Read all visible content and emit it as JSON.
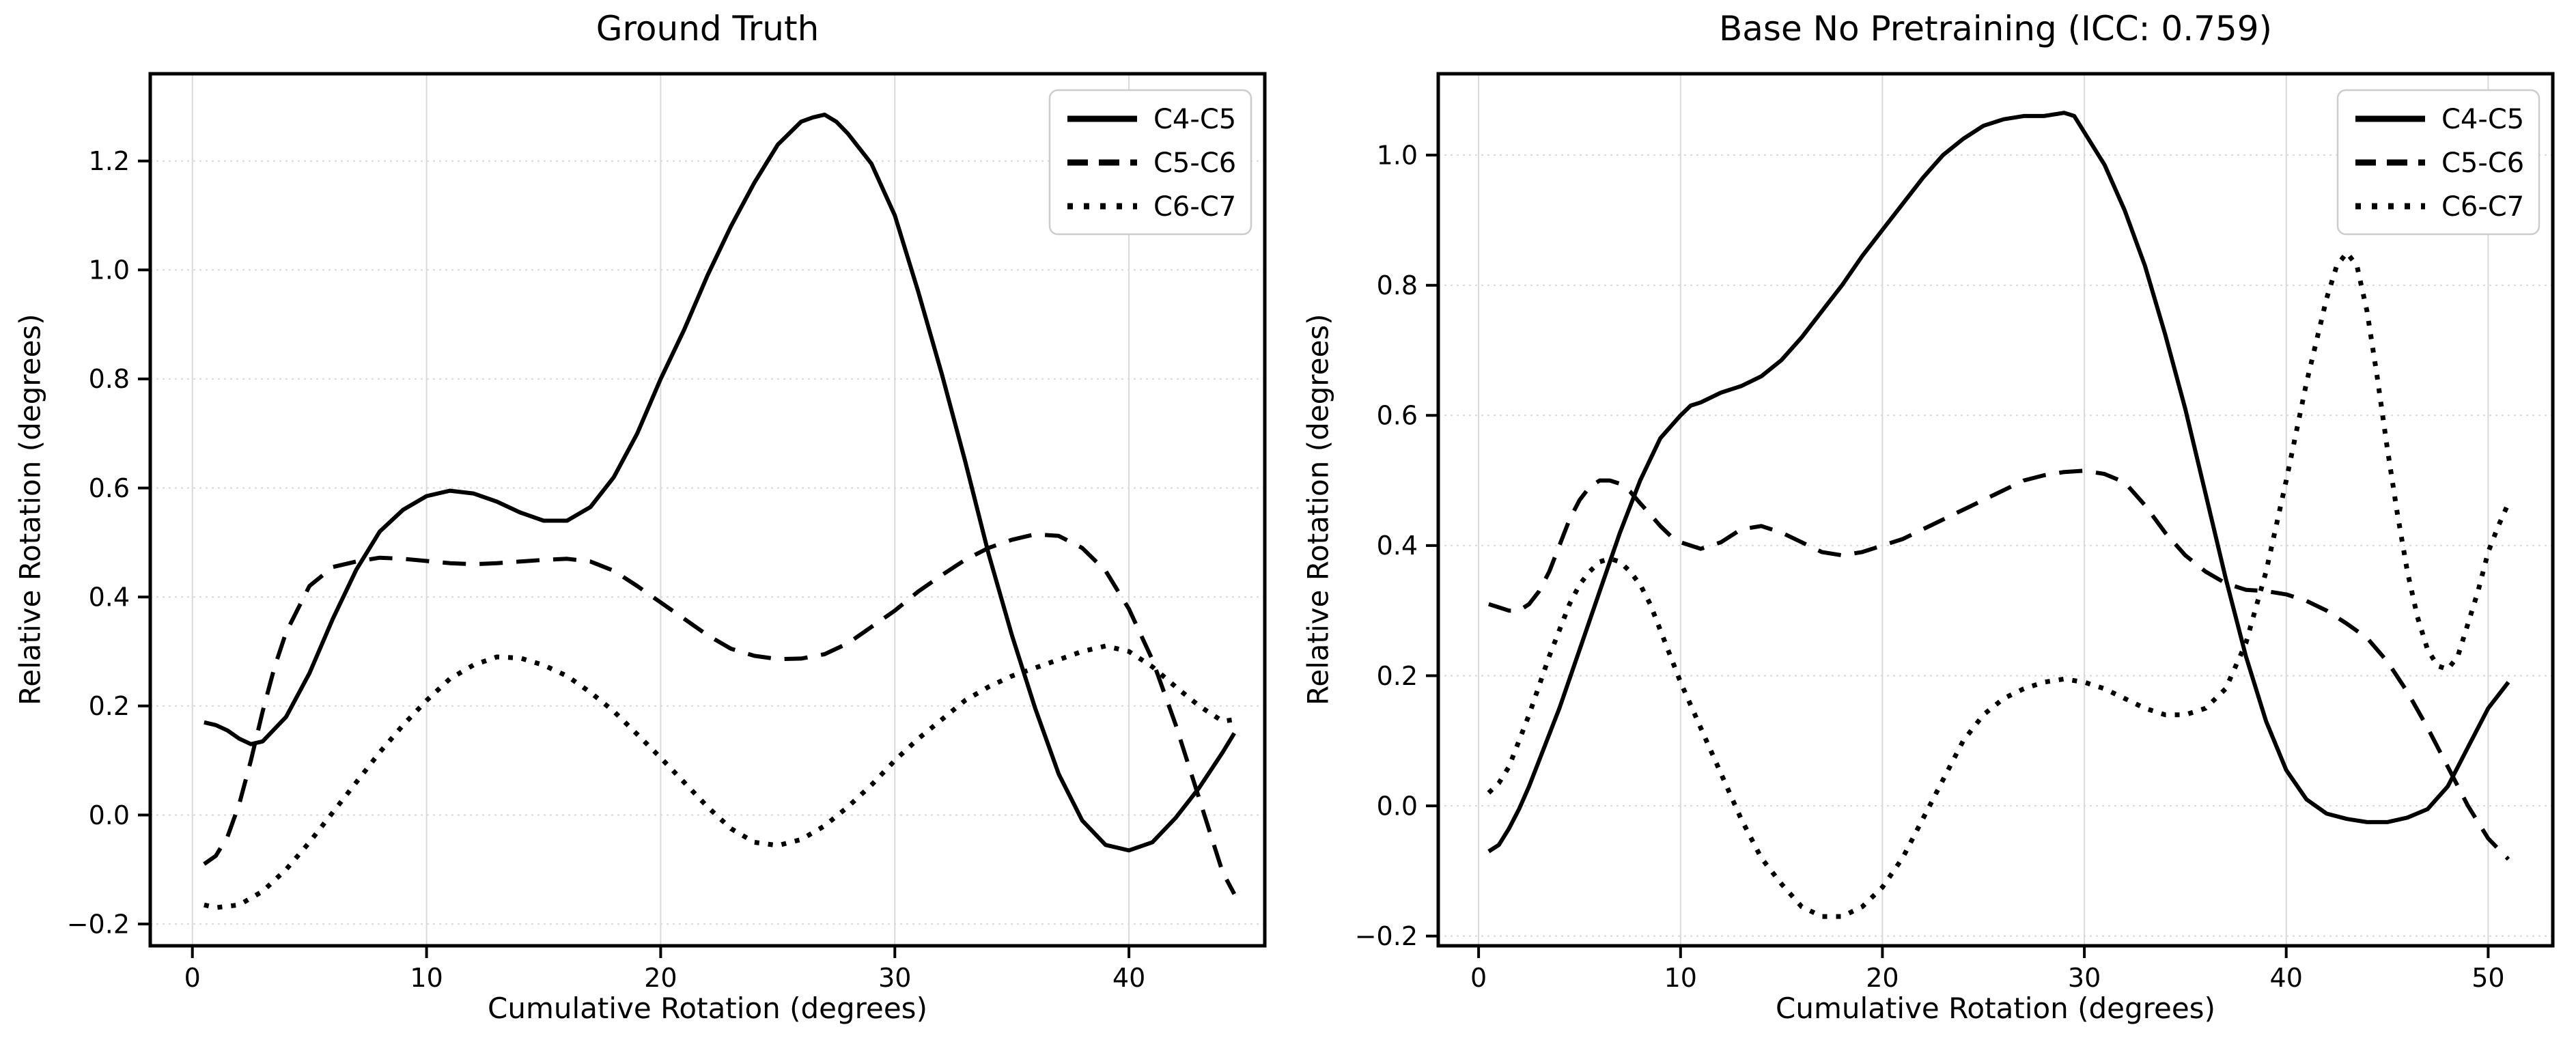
{
  "figure": {
    "background": "#ffffff",
    "line_color": "#000000",
    "grid_color": "#d9d9d9",
    "spine_color": "#000000",
    "text_color": "#000000"
  },
  "chart_data": [
    {
      "type": "line",
      "title": "Ground Truth",
      "xlabel": "Cumulative Rotation (degrees)",
      "ylabel": "Relative Rotation (degrees)",
      "xlim": [
        -1.8,
        45.8
      ],
      "ylim": [
        -0.24,
        1.36
      ],
      "grid": true,
      "legend_position": "upper right",
      "xticks": {
        "values": [
          0,
          10,
          20,
          30,
          40
        ],
        "labels": [
          "0",
          "10",
          "20",
          "30",
          "40"
        ]
      },
      "yticks": {
        "values": [
          -0.2,
          0.0,
          0.2,
          0.4,
          0.6,
          0.8,
          1.0,
          1.2
        ],
        "labels": [
          "−0.2",
          "0.0",
          "0.2",
          "0.4",
          "0.6",
          "0.8",
          "1.0",
          "1.2"
        ]
      },
      "series": [
        {
          "name": "C4-C5",
          "style": "solid",
          "x": [
            0.5,
            1,
            1.5,
            2,
            2.5,
            3,
            4,
            5,
            6,
            7,
            8,
            9,
            10,
            11,
            12,
            13,
            14,
            15,
            16,
            17,
            18,
            19,
            20,
            21,
            22,
            23,
            24,
            25,
            26,
            26.5,
            27,
            27.5,
            28,
            29,
            30,
            31,
            32,
            33,
            34,
            35,
            36,
            37,
            38,
            39,
            40,
            41,
            42,
            43,
            44,
            44.5
          ],
          "y": [
            0.17,
            0.165,
            0.155,
            0.14,
            0.13,
            0.135,
            0.18,
            0.26,
            0.36,
            0.45,
            0.52,
            0.56,
            0.585,
            0.595,
            0.59,
            0.575,
            0.555,
            0.54,
            0.54,
            0.565,
            0.62,
            0.7,
            0.8,
            0.89,
            0.99,
            1.08,
            1.16,
            1.23,
            1.272,
            1.28,
            1.285,
            1.272,
            1.25,
            1.195,
            1.1,
            0.96,
            0.81,
            0.65,
            0.48,
            0.33,
            0.195,
            0.075,
            -0.01,
            -0.055,
            -0.065,
            -0.05,
            -0.005,
            0.05,
            0.115,
            0.15
          ]
        },
        {
          "name": "C5-C6",
          "style": "dashed",
          "x": [
            0.5,
            1,
            1.5,
            2,
            2.5,
            3,
            3.5,
            4,
            5,
            6,
            7,
            8,
            9,
            10,
            11,
            12,
            13,
            14,
            15,
            16,
            17,
            18,
            19,
            20,
            21,
            22,
            23,
            24,
            25,
            26,
            27,
            28,
            29,
            30,
            31,
            32,
            33,
            34,
            35,
            36,
            37,
            38,
            39,
            40,
            41,
            42,
            43,
            44,
            44.5
          ],
          "y": [
            -0.09,
            -0.075,
            -0.04,
            0.02,
            0.1,
            0.19,
            0.27,
            0.335,
            0.42,
            0.455,
            0.465,
            0.472,
            0.47,
            0.466,
            0.462,
            0.46,
            0.462,
            0.465,
            0.468,
            0.47,
            0.465,
            0.448,
            0.42,
            0.39,
            0.36,
            0.33,
            0.305,
            0.292,
            0.286,
            0.287,
            0.295,
            0.315,
            0.345,
            0.375,
            0.41,
            0.44,
            0.468,
            0.49,
            0.505,
            0.515,
            0.512,
            0.49,
            0.448,
            0.378,
            0.285,
            0.165,
            0.03,
            -0.105,
            -0.145
          ]
        },
        {
          "name": "C6-C7",
          "style": "dotted",
          "x": [
            0.5,
            1,
            2,
            3,
            4,
            5,
            6,
            7,
            8,
            9,
            10,
            11,
            12,
            13,
            14,
            15,
            16,
            17,
            18,
            19,
            20,
            21,
            22,
            23,
            24,
            25,
            26,
            27,
            28,
            29,
            30,
            31,
            32,
            33,
            34,
            35,
            36,
            37,
            38,
            39,
            40,
            41,
            42,
            43,
            44,
            44.5
          ],
          "y": [
            -0.165,
            -0.17,
            -0.165,
            -0.14,
            -0.1,
            -0.05,
            0.005,
            0.06,
            0.115,
            0.165,
            0.21,
            0.25,
            0.275,
            0.29,
            0.288,
            0.275,
            0.255,
            0.225,
            0.19,
            0.148,
            0.105,
            0.06,
            0.015,
            -0.025,
            -0.05,
            -0.056,
            -0.045,
            -0.02,
            0.015,
            0.055,
            0.1,
            0.14,
            0.175,
            0.21,
            0.235,
            0.255,
            0.27,
            0.285,
            0.3,
            0.31,
            0.3,
            0.272,
            0.235,
            0.2,
            0.172,
            0.175
          ]
        }
      ]
    },
    {
      "type": "line",
      "title": "Base No Pretraining (ICC: 0.759)",
      "xlabel": "Cumulative Rotation (degrees)",
      "ylabel": "Relative Rotation (degrees)",
      "xlim": [
        -2.0,
        53.2
      ],
      "ylim": [
        -0.215,
        1.125
      ],
      "grid": true,
      "legend_position": "upper right",
      "xticks": {
        "values": [
          0,
          10,
          20,
          30,
          40,
          50
        ],
        "labels": [
          "0",
          "10",
          "20",
          "30",
          "40",
          "50"
        ]
      },
      "yticks": {
        "values": [
          -0.2,
          0.0,
          0.2,
          0.4,
          0.6,
          0.8,
          1.0
        ],
        "labels": [
          "−0.2",
          "0.0",
          "0.2",
          "0.4",
          "0.6",
          "0.8",
          "1.0"
        ]
      },
      "series": [
        {
          "name": "C4-C5",
          "style": "solid",
          "x": [
            0.5,
            1,
            1.5,
            2,
            2.5,
            3,
            4,
            5,
            6,
            7,
            8,
            9,
            10,
            10.5,
            11,
            12,
            13,
            14,
            15,
            16,
            17,
            18,
            19,
            20,
            21,
            22,
            23,
            24,
            25,
            26,
            27,
            28,
            29,
            29.5,
            30,
            31,
            32,
            33,
            34,
            35,
            36,
            37,
            38,
            39,
            40,
            41,
            42,
            43,
            44,
            45,
            46,
            47,
            48,
            49,
            50,
            51
          ],
          "y": [
            -0.07,
            -0.06,
            -0.035,
            -0.005,
            0.03,
            0.07,
            0.15,
            0.24,
            0.33,
            0.42,
            0.5,
            0.565,
            0.6,
            0.615,
            0.62,
            0.635,
            0.645,
            0.66,
            0.685,
            0.72,
            0.76,
            0.8,
            0.845,
            0.885,
            0.925,
            0.965,
            1.0,
            1.025,
            1.045,
            1.055,
            1.06,
            1.06,
            1.065,
            1.06,
            1.035,
            0.985,
            0.915,
            0.83,
            0.725,
            0.61,
            0.48,
            0.35,
            0.23,
            0.13,
            0.055,
            0.01,
            -0.012,
            -0.02,
            -0.025,
            -0.025,
            -0.018,
            -0.005,
            0.03,
            0.09,
            0.15,
            0.19
          ]
        },
        {
          "name": "C5-C6",
          "style": "dashed",
          "x": [
            0.5,
            1,
            1.5,
            2,
            2.5,
            3,
            3.5,
            4,
            4.5,
            5,
            5.5,
            6,
            6.5,
            7,
            7.5,
            8,
            8.5,
            9,
            9.5,
            10,
            11,
            12,
            13,
            14,
            15,
            16,
            17,
            18,
            19,
            20,
            21,
            22,
            23,
            24,
            25,
            26,
            27,
            28,
            29,
            30,
            31,
            32,
            33,
            34,
            35,
            36,
            37,
            38,
            39,
            40,
            41,
            42,
            43,
            44,
            45,
            46,
            47,
            48,
            49,
            50,
            51
          ],
          "y": [
            0.31,
            0.305,
            0.3,
            0.3,
            0.31,
            0.33,
            0.36,
            0.4,
            0.44,
            0.47,
            0.49,
            0.5,
            0.5,
            0.495,
            0.483,
            0.465,
            0.448,
            0.43,
            0.415,
            0.405,
            0.395,
            0.405,
            0.425,
            0.43,
            0.42,
            0.405,
            0.39,
            0.385,
            0.39,
            0.4,
            0.41,
            0.425,
            0.44,
            0.455,
            0.47,
            0.485,
            0.5,
            0.508,
            0.513,
            0.515,
            0.51,
            0.497,
            0.462,
            0.42,
            0.385,
            0.36,
            0.342,
            0.332,
            0.33,
            0.325,
            0.315,
            0.3,
            0.28,
            0.258,
            0.222,
            0.175,
            0.12,
            0.06,
            0.0,
            -0.05,
            -0.082
          ]
        },
        {
          "name": "C6-C7",
          "style": "dotted",
          "x": [
            0.5,
            1,
            1.5,
            2,
            2.5,
            3,
            3.5,
            4,
            4.5,
            5,
            5.5,
            6,
            6.5,
            7,
            7.5,
            8,
            8.5,
            9,
            9.5,
            10,
            10.5,
            11,
            12,
            13,
            14,
            15,
            16,
            17,
            18,
            19,
            20,
            21,
            22,
            23,
            24,
            25,
            26,
            27,
            28,
            29,
            30,
            31,
            32,
            33,
            34,
            35,
            36,
            37,
            38,
            39,
            40,
            41,
            42,
            42.5,
            43,
            43.5,
            44,
            44.5,
            45,
            45.5,
            46,
            46.5,
            47,
            47.5,
            48,
            48.5,
            49,
            49.5,
            50,
            50.5,
            51
          ],
          "y": [
            0.02,
            0.035,
            0.06,
            0.1,
            0.14,
            0.185,
            0.23,
            0.27,
            0.31,
            0.34,
            0.36,
            0.375,
            0.38,
            0.375,
            0.36,
            0.34,
            0.31,
            0.27,
            0.23,
            0.19,
            0.155,
            0.12,
            0.05,
            -0.02,
            -0.08,
            -0.12,
            -0.155,
            -0.17,
            -0.17,
            -0.155,
            -0.125,
            -0.08,
            -0.02,
            0.04,
            0.1,
            0.14,
            0.165,
            0.18,
            0.19,
            0.195,
            0.19,
            0.18,
            0.165,
            0.15,
            0.14,
            0.14,
            0.15,
            0.18,
            0.25,
            0.36,
            0.5,
            0.65,
            0.78,
            0.83,
            0.85,
            0.83,
            0.76,
            0.66,
            0.55,
            0.45,
            0.36,
            0.29,
            0.24,
            0.215,
            0.21,
            0.23,
            0.28,
            0.33,
            0.39,
            0.43,
            0.465
          ]
        }
      ]
    }
  ]
}
